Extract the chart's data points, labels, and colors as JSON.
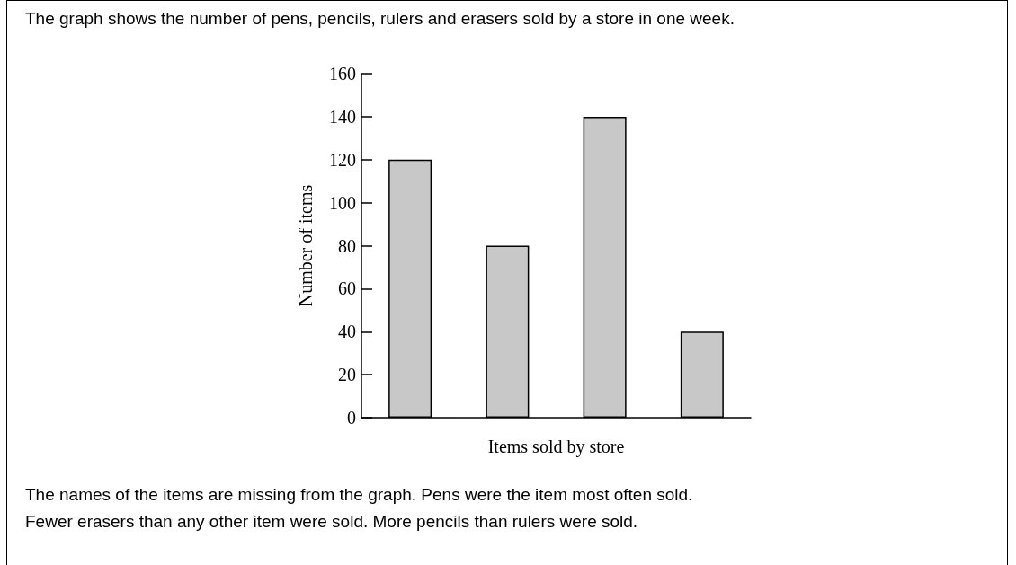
{
  "chart_data": {
    "type": "bar",
    "title": "The graph shows the number of pens, pencils, rulers and erasers sold by a store in one week.",
    "xlabel": "Items sold by store",
    "ylabel": "Number of items",
    "categories": [
      null,
      null,
      null,
      null
    ],
    "values": [
      120,
      80,
      140,
      40
    ],
    "color": "#c8c8c8",
    "ylim": [
      0,
      160
    ],
    "yticks": [
      0,
      20,
      40,
      60,
      80,
      100,
      120,
      140,
      160
    ],
    "grid": false,
    "annotations": [
      "The names of the items are missing from the graph. Pens were the item most often sold.",
      "Fewer erasers than any other item were sold. More pencils than rulers were sold."
    ]
  }
}
